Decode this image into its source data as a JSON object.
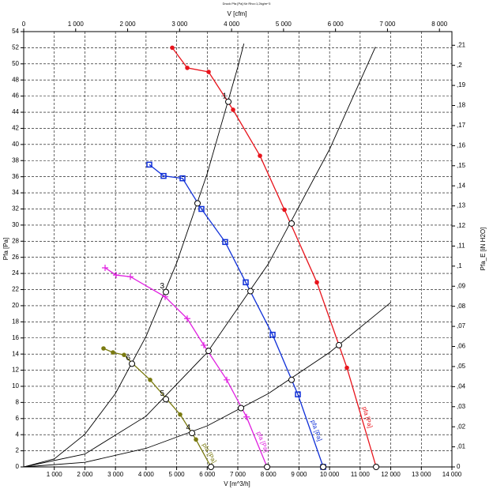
{
  "chart_data": {
    "type": "line",
    "title": "Druck Pfa [Pa] für Rho=1,2kg/m^3",
    "x_label": "V [m^3/h]",
    "x2_label": "V [cfm]",
    "y_label": "Pfa [Pa]",
    "y2_label": "Pfa_E [iN H2O]",
    "grid": true,
    "xlim": [
      0,
      14000
    ],
    "xticks": [
      {
        "value": 1000,
        "label": "1 000"
      },
      {
        "value": 2000,
        "label": "2 000"
      },
      {
        "value": 3000,
        "label": "3 000"
      },
      {
        "value": 4000,
        "label": "4 000"
      },
      {
        "value": 5000,
        "label": "5 000"
      },
      {
        "value": 6000,
        "label": "6 000"
      },
      {
        "value": 7000,
        "label": "7 000"
      },
      {
        "value": 8000,
        "label": "8 000"
      },
      {
        "value": 9000,
        "label": "9 000"
      },
      {
        "value": 10000,
        "label": "10 000"
      },
      {
        "value": 11000,
        "label": "11 000"
      },
      {
        "value": 12000,
        "label": "12 000"
      },
      {
        "value": 13000,
        "label": "13 000"
      },
      {
        "value": 14000,
        "label": "14 000"
      }
    ],
    "x2lim": [
      0,
      8240
    ],
    "x2ticks": [
      0,
      {
        "value": 1000,
        "label": "1 000"
      },
      {
        "value": 2000,
        "label": "2 000"
      },
      {
        "value": 3000,
        "label": "3 000"
      },
      {
        "value": 4000,
        "label": "4 000"
      },
      {
        "value": 5000,
        "label": "5 000"
      },
      {
        "value": 6000,
        "label": "6 000"
      },
      {
        "value": 7000,
        "label": "7 000"
      },
      {
        "value": 8000,
        "label": "8 000"
      }
    ],
    "ylim": [
      0,
      54
    ],
    "yticks": [
      0,
      2,
      4,
      6,
      8,
      10,
      12,
      14,
      16,
      18,
      20,
      22,
      24,
      26,
      28,
      30,
      32,
      34,
      36,
      38,
      40,
      42,
      44,
      46,
      48,
      50,
      52,
      54
    ],
    "y2lim": [
      0,
      0.2168
    ],
    "y2ticks": [
      0,
      {
        "value": 0.01,
        "label": ",01"
      },
      {
        "value": 0.02,
        "label": ",02"
      },
      {
        "value": 0.03,
        "label": ",03"
      },
      {
        "value": 0.04,
        "label": ",04"
      },
      {
        "value": 0.05,
        "label": ",05"
      },
      {
        "value": 0.06,
        "label": ",06"
      },
      {
        "value": 0.07,
        "label": ",07"
      },
      {
        "value": 0.08,
        "label": ",08"
      },
      {
        "value": 0.09,
        "label": ",09"
      },
      {
        "value": 0.1,
        "label": ",1"
      },
      {
        "value": 0.11,
        "label": ",11"
      },
      {
        "value": 0.12,
        "label": ",12"
      },
      {
        "value": 0.13,
        "label": ",13"
      },
      {
        "value": 0.14,
        "label": ",14"
      },
      {
        "value": 0.15,
        "label": ",15"
      },
      {
        "value": 0.16,
        "label": ",16"
      },
      {
        "value": 0.17,
        "label": ",17"
      },
      {
        "value": 0.18,
        "label": ",18"
      },
      {
        "value": 0.19,
        "label": ",19"
      },
      {
        "value": 0.2,
        "label": ",2"
      },
      {
        "value": 0.21,
        "label": ",21"
      }
    ],
    "series": [
      {
        "name": "pfa [Pa]",
        "color": "#e8141c",
        "marker": "circle",
        "x": [
          4857,
          5348,
          6045,
          6846,
          7724,
          8525,
          9584,
          10566,
          11522
        ],
        "values": [
          52.0,
          49.5,
          49.0,
          44.3,
          38.6,
          31.9,
          22.9,
          12.3,
          0
        ]
      },
      {
        "name": "pfa [Pa]",
        "color": "#1030d8",
        "marker": "square",
        "x": [
          4107,
          4572,
          5192,
          5812,
          6587,
          7259,
          8137,
          8964,
          9791
        ],
        "values": [
          37.5,
          36.1,
          35.8,
          32.0,
          27.9,
          22.9,
          16.4,
          9.0,
          0
        ]
      },
      {
        "name": "pfa [Pa]",
        "color": "#e020e0",
        "marker": "plus",
        "x": [
          2661,
          3022,
          3487,
          4624,
          5347,
          5890,
          6639,
          7285,
          7957
        ],
        "values": [
          24.7,
          23.8,
          23.6,
          21.1,
          18.4,
          15.1,
          10.8,
          6.2,
          0
        ]
      },
      {
        "name": "pfa [Pa]",
        "color": "#7a7a10",
        "marker": "circle",
        "x": [
          2609,
          2919,
          3281,
          3565,
          4133,
          5115,
          5632,
          6122
        ],
        "values": [
          14.7,
          14.2,
          13.9,
          12.8,
          10.8,
          6.5,
          3.4,
          0
        ]
      }
    ],
    "system_curves": [
      {
        "color": "#000000",
        "x": [
          0,
          1000,
          2000,
          3000,
          4000,
          5000,
          6000,
          7000,
          7200
        ],
        "values": [
          0,
          1.0,
          4.05,
          9.1,
          16.2,
          25.3,
          36.4,
          49.6,
          52.5
        ]
      },
      {
        "color": "#000000",
        "x": [
          0,
          2000,
          4000,
          6000,
          8000,
          10000,
          11500
        ],
        "values": [
          0,
          1.6,
          6.3,
          14.2,
          25.2,
          39.4,
          52.1
        ]
      },
      {
        "color": "#000000",
        "x": [
          0,
          2000,
          4000,
          6000,
          8000,
          10000,
          12000
        ],
        "values": [
          0,
          0.57,
          2.3,
          5.1,
          9.1,
          14.2,
          20.4
        ]
      }
    ],
    "operating_points": {
      "x": [
        3539,
        4650,
        5683,
        6691,
        4650,
        6045,
        7414,
        8757,
        5503,
        7104,
        8757,
        10307,
        6122,
        7957,
        9791,
        11522
      ],
      "values": [
        12.8,
        21.7,
        32.7,
        45.3,
        8.4,
        14.4,
        21.8,
        30.2,
        4.2,
        7.3,
        10.8,
        15.1,
        0,
        0,
        0,
        0
      ],
      "labels": [
        "6",
        "3",
        null,
        "1",
        "5",
        null,
        null,
        null,
        "4",
        null,
        null,
        null,
        null,
        null,
        null,
        null
      ]
    }
  }
}
